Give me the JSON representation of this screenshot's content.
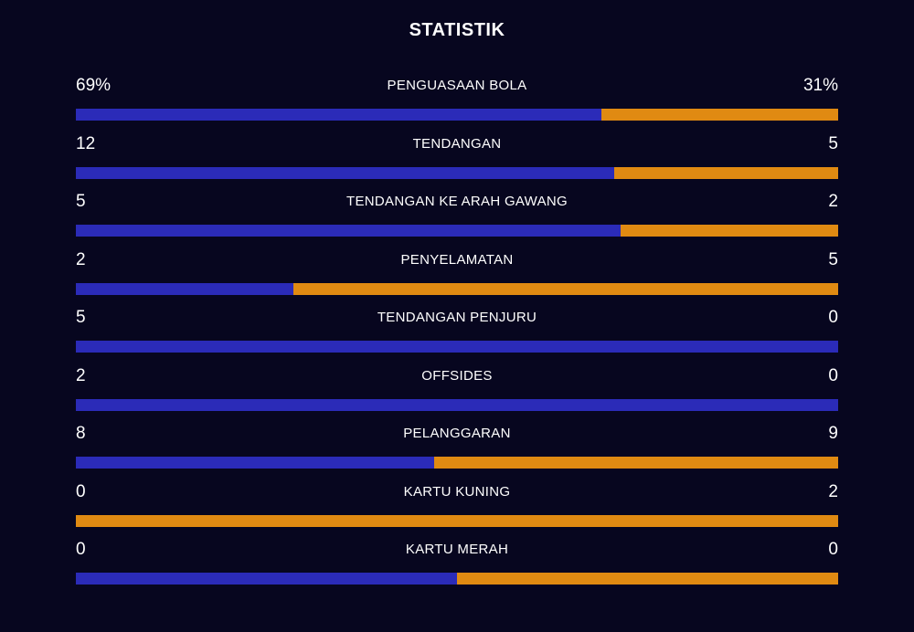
{
  "title": "STATISTIK",
  "colors": {
    "background": "#07061f",
    "home": "#2b2bb8",
    "away": "#e08a12",
    "text": "#ffffff"
  },
  "stats": [
    {
      "label": "PENGUASAAN BOLA",
      "home": "69%",
      "away": "31%",
      "home_share": 0.69
    },
    {
      "label": "TENDANGAN",
      "home": "12",
      "away": "5",
      "home_share": 0.7059
    },
    {
      "label": "TENDANGAN KE ARAH GAWANG",
      "home": "5",
      "away": "2",
      "home_share": 0.7143
    },
    {
      "label": "PENYELAMATAN",
      "home": "2",
      "away": "5",
      "home_share": 0.2857
    },
    {
      "label": "TENDANGAN PENJURU",
      "home": "5",
      "away": "0",
      "home_share": 1.0
    },
    {
      "label": "OFFSIDES",
      "home": "2",
      "away": "0",
      "home_share": 1.0
    },
    {
      "label": "PELANGGARAN",
      "home": "8",
      "away": "9",
      "home_share": 0.4706
    },
    {
      "label": "KARTU KUNING",
      "home": "0",
      "away": "2",
      "home_share": 0.0
    },
    {
      "label": "KARTU MERAH",
      "home": "0",
      "away": "0",
      "home_share": 0.5
    }
  ]
}
